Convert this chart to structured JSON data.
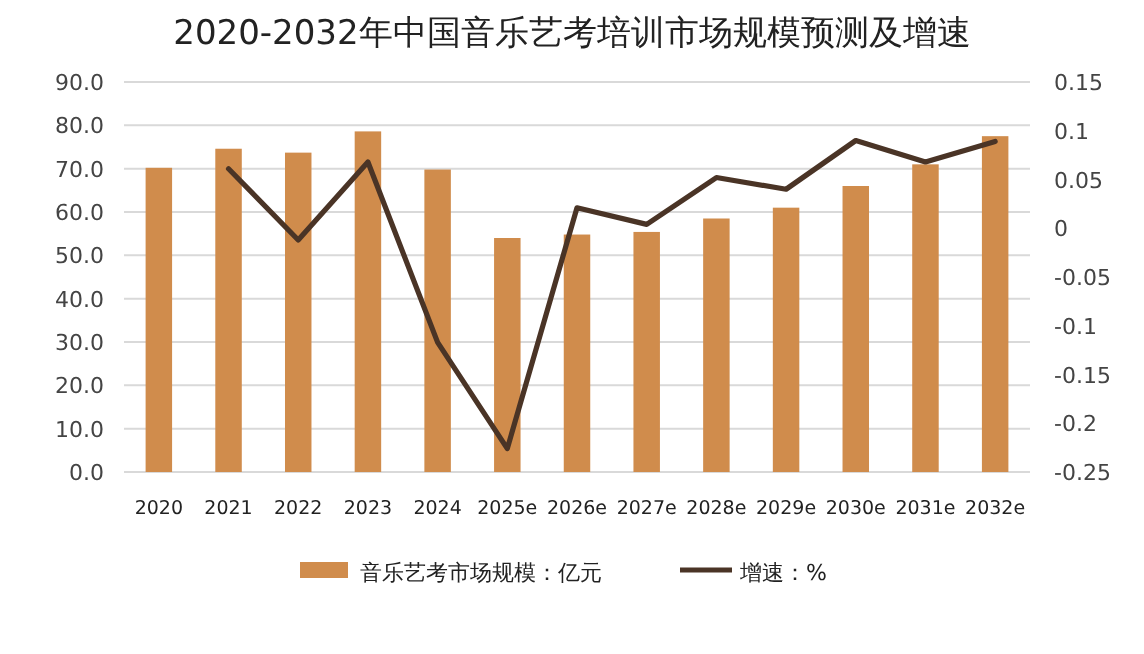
{
  "chart_data": {
    "type": "bar",
    "title": "2020-2032年中国音乐艺考培训市场规模预测及增速",
    "categories": [
      "2020",
      "2021",
      "2022",
      "2023",
      "2024",
      "2025e",
      "2026e",
      "2027e",
      "2028e",
      "2029e",
      "2030e",
      "2031e",
      "2032e"
    ],
    "series": [
      {
        "name": "音乐艺考市场规模：亿元",
        "color": "#d08c4c",
        "values": [
          70.2,
          74.6,
          73.7,
          78.6,
          69.8,
          54.0,
          54.8,
          55.4,
          58.5,
          61.0,
          66.0,
          71.0,
          77.5
        ]
      },
      {
        "name": "增速：%",
        "type": "line",
        "axis": "y2",
        "color": "#4a3426",
        "values": [
          null,
          0.061,
          -0.012,
          0.068,
          -0.117,
          -0.226,
          0.021,
          0.004,
          0.052,
          0.04,
          0.09,
          0.068,
          0.089
        ]
      }
    ],
    "ylim": [
      0,
      90
    ],
    "yticks": [
      {
        "value": 0,
        "label": "0.0"
      },
      {
        "value": 10,
        "label": "10.0"
      },
      {
        "value": 20,
        "label": "20.0"
      },
      {
        "value": 30,
        "label": "30.0"
      },
      {
        "value": 40,
        "label": "40.0"
      },
      {
        "value": 50,
        "label": "50.0"
      },
      {
        "value": 60,
        "label": "60.0"
      },
      {
        "value": 70,
        "label": "70.0"
      },
      {
        "value": 80,
        "label": "80.0"
      },
      {
        "value": 90,
        "label": "90.0"
      }
    ],
    "y2lim": [
      -0.25,
      0.15
    ],
    "y2ticks": [
      -0.25,
      -0.2,
      -0.15,
      -0.1,
      -0.05,
      0,
      0.05,
      0.1,
      0.15
    ],
    "grid": "y",
    "legend": "bottom"
  }
}
